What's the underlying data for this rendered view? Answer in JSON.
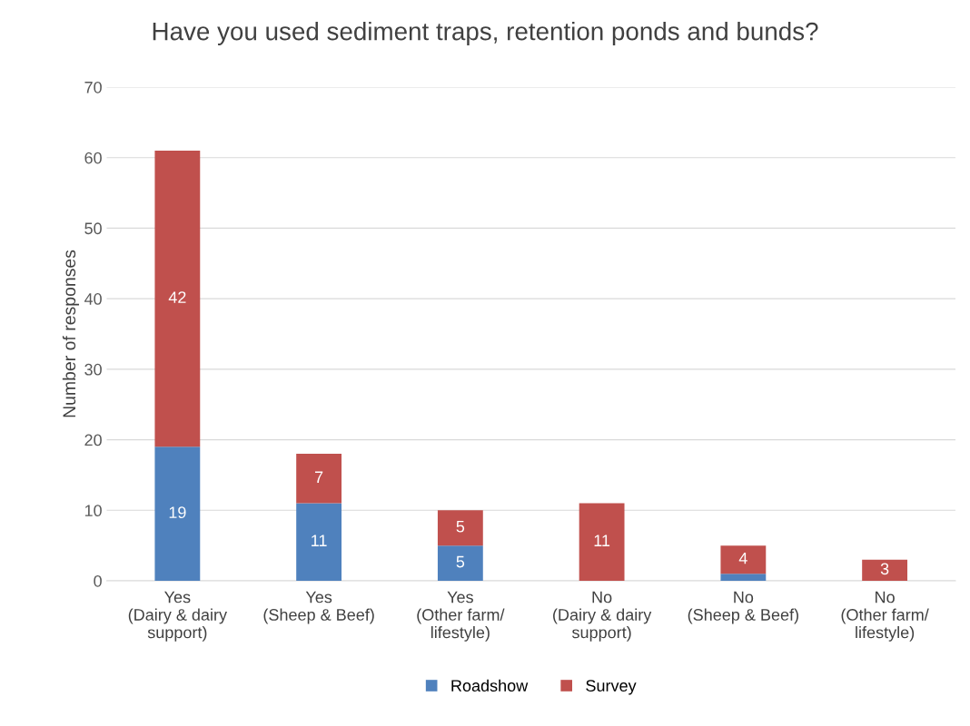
{
  "chart_data": {
    "type": "bar",
    "title": "Have you used sediment traps, retention ponds and bunds?",
    "ylabel": "Number of responses",
    "categories": [
      "Yes\n(Dairy & dairy\nsupport)",
      "Yes\n(Sheep & Beef)",
      "Yes\n(Other farm/\nlifestyle)",
      "No\n(Dairy & dairy\nsupport)",
      "No\n(Sheep & Beef)",
      "No\n(Other farm/\nlifestyle)"
    ],
    "stacked": true,
    "series": [
      {
        "name": "Roadshow",
        "color": "#4f81bd",
        "values": [
          19,
          11,
          5,
          0,
          1,
          0
        ],
        "value_labels": [
          "19",
          "11",
          "5",
          null,
          null,
          null
        ]
      },
      {
        "name": "Survey",
        "color": "#c0504d",
        "values": [
          42,
          7,
          5,
          11,
          4,
          3
        ],
        "value_labels": [
          "42",
          "7",
          "5",
          "11",
          "4",
          "3"
        ]
      }
    ],
    "ylim": [
      0,
      70
    ],
    "yticks": [
      0,
      10,
      20,
      30,
      40,
      50,
      60,
      70
    ],
    "grid": "y",
    "legend": "bottom"
  }
}
